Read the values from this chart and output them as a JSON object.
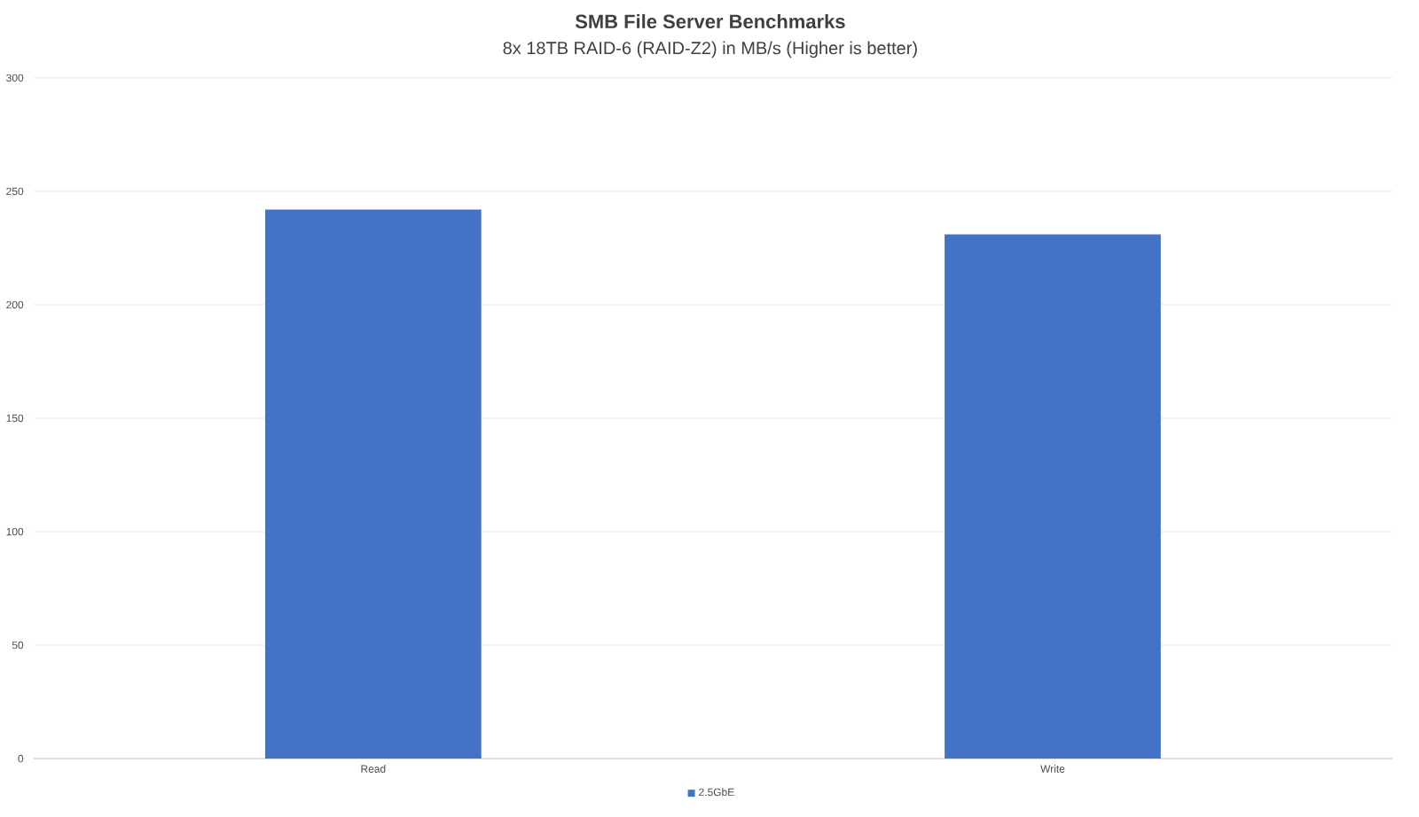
{
  "chart_data": {
    "type": "bar",
    "title": "SMB File Server Benchmarks",
    "subtitle": "8x 18TB RAID-6 (RAID-Z2) in MB/s (Higher is better)",
    "categories": [
      "Read",
      "Write"
    ],
    "series": [
      {
        "name": "2.5GbE",
        "color": "#4472c4",
        "values": [
          242,
          231
        ]
      }
    ],
    "ylim": [
      0,
      300
    ],
    "yticks": [
      0,
      50,
      100,
      150,
      200,
      250,
      300
    ],
    "grid": "y",
    "legend": "bottom"
  }
}
